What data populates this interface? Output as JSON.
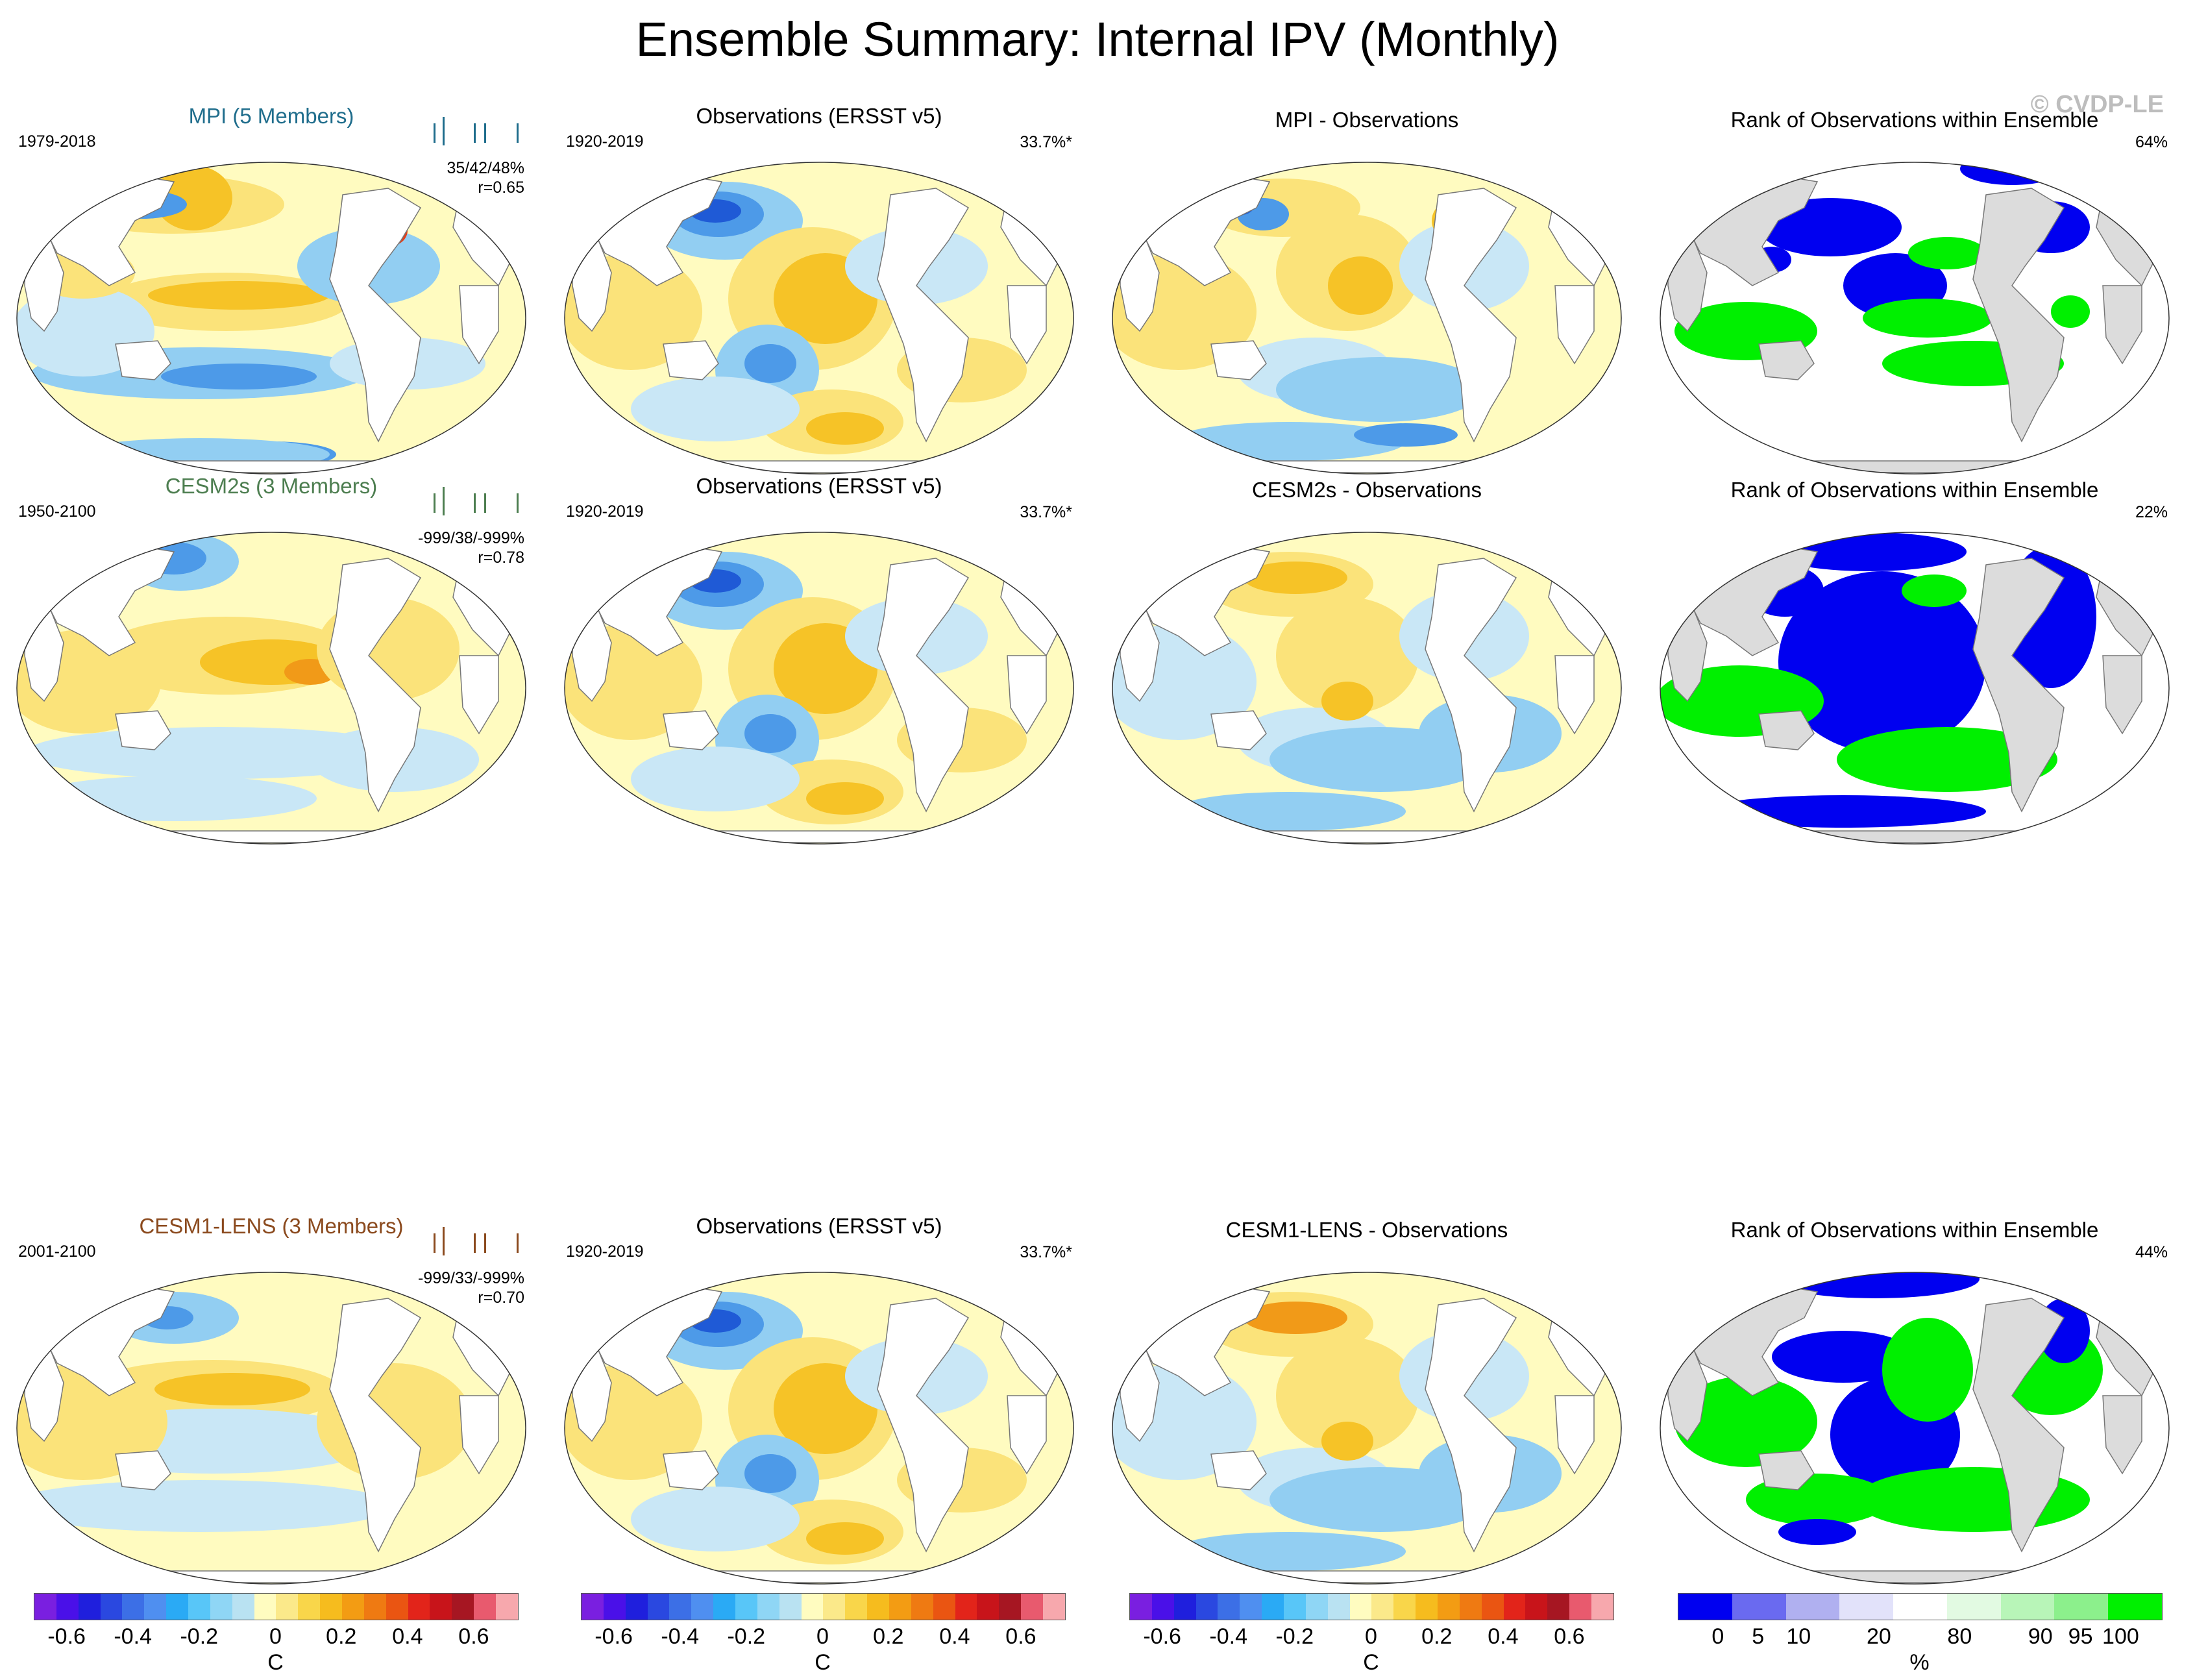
{
  "title": "Ensemble Summary: Internal IPV (Monthly)",
  "watermark": "© CVDP-LE",
  "rows": [
    {
      "model": {
        "title": "MPI (5 Members)",
        "color": "#1f6d8c",
        "period": "1979-2018",
        "stat1": "35/42/48%",
        "stat2": "r=0.65"
      },
      "obs": {
        "title": "Observations (ERSST v5)",
        "period": "1920-2019",
        "pct": "33.7%*"
      },
      "diff": {
        "title": "MPI - Observations"
      },
      "rank": {
        "title": "Rank of Observations within Ensemble",
        "pct": "64%"
      }
    },
    {
      "model": {
        "title": "CESM2s (3 Members)",
        "color": "#4d7e50",
        "period": "1950-2100",
        "stat1": "-999/38/-999%",
        "stat2": "r=0.78"
      },
      "obs": {
        "title": "Observations (ERSST v5)",
        "period": "1920-2019",
        "pct": "33.7%*"
      },
      "diff": {
        "title": "CESM2s - Observations"
      },
      "rank": {
        "title": "Rank of Observations within Ensemble",
        "pct": "22%"
      }
    },
    {
      "model": {
        "title": "CESM1-LENS (3 Members)",
        "color": "#8b4a1e",
        "period": "2001-2100",
        "stat1": "-999/33/-999%",
        "stat2": "r=0.70"
      },
      "obs": {
        "title": "Observations (ERSST v5)",
        "period": "1920-2019",
        "pct": "33.7%*"
      },
      "diff": {
        "title": "CESM1-LENS - Observations"
      },
      "rank": {
        "title": "Rank of Observations within Ensemble",
        "pct": "44%"
      }
    }
  ],
  "colorbars": {
    "temp": {
      "labels": [
        "-0.6",
        "-0.4",
        "-0.2",
        "0",
        "0.2",
        "0.4",
        "0.6"
      ],
      "unit": "C",
      "colors": [
        "#7a1fe0",
        "#4a10e8",
        "#1f1fdd",
        "#2a48e0",
        "#3c6fe6",
        "#4f8ff0",
        "#2aaaf5",
        "#58c6f8",
        "#8fd6f5",
        "#b9e2f2",
        "#fffcc0",
        "#fbe98a",
        "#f9d64a",
        "#f6bc1e",
        "#f39c13",
        "#ef7a12",
        "#ea5512",
        "#e2241a",
        "#c8141a",
        "#a61622",
        "#e85a6e",
        "#f7a8ad"
      ]
    },
    "rank": {
      "labels": [
        "0",
        "5",
        "10",
        "20",
        "80",
        "90",
        "95",
        "100"
      ],
      "unit": "%",
      "colors": [
        "#0000f0",
        "#6a6af0",
        "#b0b0f0",
        "#e2e2fa",
        "#ffffff",
        "#e2fae2",
        "#b8f5b8",
        "#8cf08c",
        "#00f000"
      ]
    }
  }
}
